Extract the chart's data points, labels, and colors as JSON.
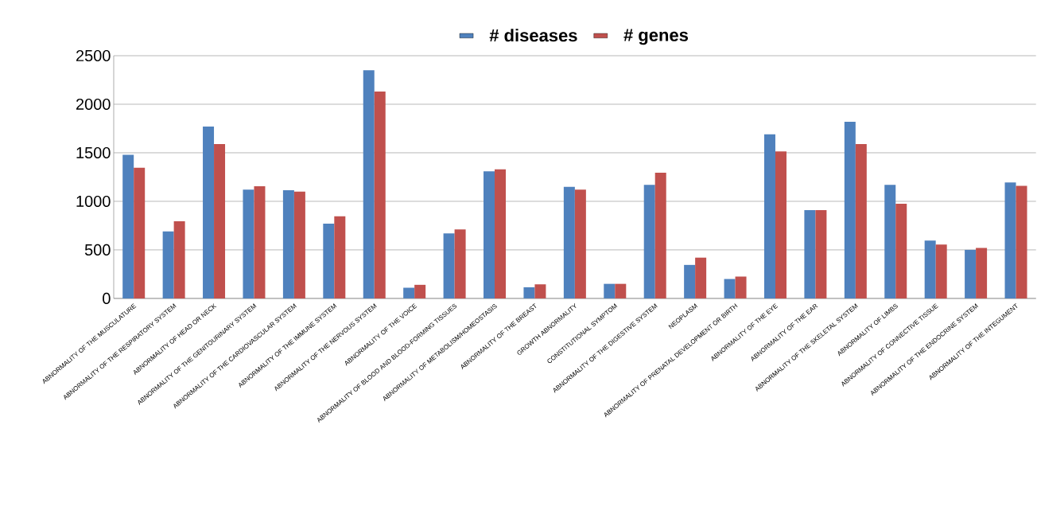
{
  "chart_data": {
    "type": "bar",
    "categories": [
      "ABNORMALITY OF THE MUSCULATURE",
      "ABNORMALITY OF THE RESPIRATORY SYSTEM",
      "ABNORMALITY OF HEAD OR NECK",
      "ABNORMALITY OF THE GENITOURINARY SYSTEM",
      "ABNORMALITY OF THE CARDIOVASCULAR SYSTEM",
      "ABNORMALITY OF THE IMMUNE SYSTEM",
      "ABNORMALITY OF THE NERVOUS SYSTEM",
      "ABNORMALITY OF THE VOICE",
      "ABNORMALITY OF BLOOD AND BLOOD-FORMING TISSUES",
      "ABNORMALITY OF METABOLISM/HOMEOSTASIS",
      "ABNORMALITY OF THE BREAST",
      "GROWTH ABNORMALITY",
      "CONSTITUTIONAL SYMPTOM",
      "ABNORMALITY OF THE DIGESTIVE SYSTEM",
      "NEOPLASM",
      "ABNORMALITY OF PRENATAL DEVELOPMENT OR BIRTH",
      "ABNORMALITY OF THE EYE",
      "ABNORMALITY OF THE EAR",
      "ABNORMALITY OF THE SKELETAL SYSTEM",
      "ABNORMALITY OF LIMBS",
      "ABNORMALITY OF CONNECTIVE TISSUE",
      "ABNORMALITY OF THE ENDOCRINE SYSTEM",
      "ABNORMALITY OF THE INTEGUMENT"
    ],
    "series": [
      {
        "name": "**# diseases**",
        "color": "#4f81bd",
        "values": [
          1480,
          690,
          1770,
          1120,
          1115,
          770,
          2350,
          110,
          670,
          1310,
          115,
          1150,
          150,
          1170,
          345,
          200,
          1690,
          910,
          1820,
          1170,
          595,
          500,
          1195
        ]
      },
      {
        "name": "**# genes**",
        "color": "#c0504d",
        "values": [
          1345,
          795,
          1590,
          1155,
          1100,
          845,
          2130,
          140,
          710,
          1330,
          145,
          1120,
          150,
          1295,
          420,
          225,
          1515,
          910,
          1590,
          975,
          555,
          520,
          1160
        ]
      }
    ],
    "ylim": [
      0,
      2500
    ],
    "yticks": [
      0,
      500,
      1000,
      1500,
      2000,
      2500
    ],
    "grid": "y",
    "legend": "top"
  }
}
